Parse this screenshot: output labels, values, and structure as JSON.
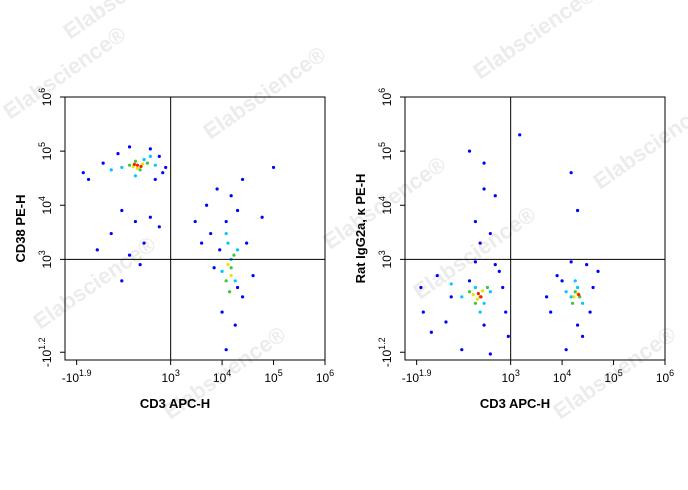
{
  "watermark": "Elabscience®",
  "chart_data": [
    {
      "type": "scatter",
      "xlabel": "CD3 APC-H",
      "ylabel": "CD38 PE-H",
      "xlim": [
        -150,
        1000000
      ],
      "ylim": [
        -35,
        1000000
      ],
      "xticks": [
        {
          "value": -79.43,
          "label": "-10^1.9"
        },
        {
          "value": 1000,
          "label": "10^3"
        },
        {
          "value": 10000,
          "label": "10^4"
        },
        {
          "value": 100000,
          "label": "10^5"
        },
        {
          "value": 1000000,
          "label": "10^6"
        }
      ],
      "yticks": [
        {
          "value": -15.85,
          "label": "-10^1.2"
        },
        {
          "value": 1000,
          "label": "10^3"
        },
        {
          "value": 10000,
          "label": "10^4"
        },
        {
          "value": 100000,
          "label": "10^5"
        },
        {
          "value": 1000000,
          "label": "10^6"
        }
      ],
      "gates": {
        "x": 1000,
        "y": 1000
      },
      "series": [
        {
          "color": "#0000ff",
          "x": [
            -50,
            20,
            80,
            150,
            400,
            600,
            800,
            -30,
            500,
            700,
            100,
            200,
            50,
            300,
            400,
            0,
            150,
            250,
            100,
            600,
            5000,
            8000,
            12000,
            20000,
            6000,
            9000,
            30000,
            15000,
            25000,
            7000,
            4000,
            40000,
            10000,
            18000,
            25000,
            100000,
            60000,
            3000,
            12000,
            20000
          ],
          "y": [
            40000,
            60000,
            90000,
            120000,
            110000,
            80000,
            50000,
            30000,
            30000,
            40000,
            8000,
            5000,
            3000,
            2000,
            6000,
            1500,
            1200,
            800,
            400,
            4000,
            10000,
            20000,
            5000,
            8000,
            3000,
            1500,
            2000,
            15000,
            30000,
            700,
            2000,
            500,
            100,
            50,
            200,
            50000,
            6000,
            5000,
            -10,
            300
          ]
        },
        {
          "color": "#00c8ff",
          "x": [
            100,
            300,
            50,
            500,
            200,
            400,
            12000,
            15000,
            10000,
            20000,
            13000,
            18000
          ],
          "y": [
            50000,
            70000,
            45000,
            55000,
            35000,
            80000,
            3000,
            1000,
            600,
            1500,
            2000,
            400
          ]
        },
        {
          "color": "#3cc83c",
          "x": [
            150,
            250,
            350,
            200,
            15000,
            12000,
            17000,
            14000
          ],
          "y": [
            55000,
            45000,
            60000,
            65000,
            700,
            400,
            1200,
            250
          ]
        },
        {
          "color": "#f0e000",
          "x": [
            180,
            280,
            220,
            15000,
            13000
          ],
          "y": [
            52000,
            58000,
            48000,
            500,
            800
          ]
        },
        {
          "color": "#ff2000",
          "x": [
            220,
            260,
            190
          ],
          "y": [
            55000,
            52000,
            57000
          ]
        }
      ]
    },
    {
      "type": "scatter",
      "xlabel": "CD3 APC-H",
      "ylabel": "Rat IgG2a, κ PE-H",
      "xlim": [
        -150,
        1000000
      ],
      "ylim": [
        -35,
        1000000
      ],
      "xticks": [
        {
          "value": -79.43,
          "label": "-10^1.9"
        },
        {
          "value": 1000,
          "label": "10^3"
        },
        {
          "value": 10000,
          "label": "10^4"
        },
        {
          "value": 100000,
          "label": "10^5"
        },
        {
          "value": 1000000,
          "label": "10^6"
        }
      ],
      "yticks": [
        {
          "value": -15.85,
          "label": "-10^1.2"
        },
        {
          "value": 1000,
          "label": "10^3"
        },
        {
          "value": 10000,
          "label": "10^4"
        },
        {
          "value": 100000,
          "label": "10^5"
        },
        {
          "value": 1000000,
          "label": "10^6"
        }
      ],
      "gates": {
        "x": 1000,
        "y": 1000
      },
      "series": [
        {
          "color": "#0000ff",
          "x": [
            -50,
            0,
            100,
            300,
            500,
            700,
            -20,
            50,
            800,
            200,
            400,
            600,
            150,
            -60,
            30,
            900,
            5000,
            8000,
            12000,
            20000,
            30000,
            40000,
            6000,
            15000,
            25000,
            10000,
            35000,
            50000,
            200,
            300,
            150,
            500,
            400,
            250,
            20000,
            15000,
            1500,
            300
          ],
          "y": [
            100,
            500,
            -10,
            50,
            800,
            300,
            30,
            200,
            100,
            900,
            -20,
            600,
            400,
            300,
            60,
            20,
            200,
            500,
            -10,
            50,
            800,
            300,
            100,
            900,
            20,
            400,
            100,
            600,
            5000,
            20000,
            100000,
            15000,
            3000,
            2000,
            8000,
            40000,
            200000,
            60000
          ]
        },
        {
          "color": "#00c8ff",
          "x": [
            100,
            200,
            300,
            400,
            50,
            250,
            15000,
            20000,
            25000,
            12000,
            18000
          ],
          "y": [
            200,
            300,
            150,
            250,
            350,
            100,
            200,
            300,
            150,
            250,
            400
          ]
        },
        {
          "color": "#3cc83c",
          "x": [
            150,
            250,
            350,
            200,
            18000,
            22000,
            16000
          ],
          "y": [
            250,
            200,
            300,
            150,
            250,
            200,
            150
          ]
        },
        {
          "color": "#f0e000",
          "x": [
            180,
            280,
            220,
            20000,
            17000
          ],
          "y": [
            220,
            260,
            180,
            230,
            200
          ]
        },
        {
          "color": "#ff2000",
          "x": [
            230,
            260,
            21000
          ],
          "y": [
            230,
            200,
            220
          ]
        }
      ]
    }
  ]
}
